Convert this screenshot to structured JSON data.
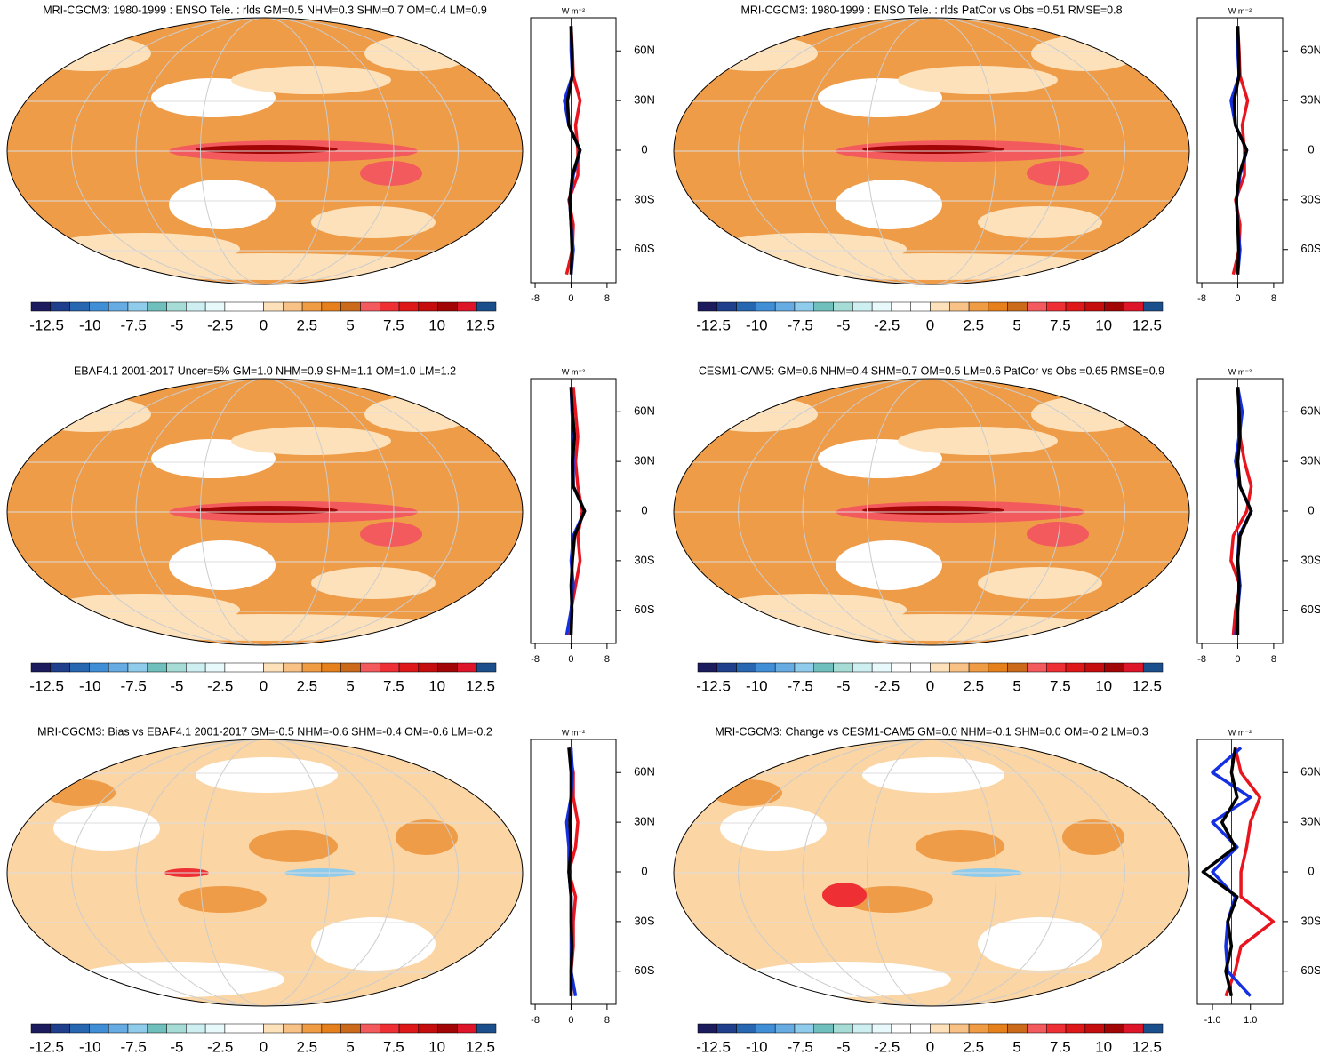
{
  "colorbar": {
    "colors": [
      "#1b1b5e",
      "#1f3f8c",
      "#2766b0",
      "#3f8ed6",
      "#66abe2",
      "#8fcbea",
      "#6fc0bd",
      "#a6dcd6",
      "#cdeff1",
      "#e8f9fb",
      "#ffffff",
      "#ffffff",
      "#fde1bb",
      "#f8c185",
      "#f09c45",
      "#e5801c",
      "#cc6a1c",
      "#f25a5e",
      "#ee3035",
      "#de1818",
      "#c50d0d",
      "#a10505",
      "#de1428",
      "#1b4f8c"
    ],
    "clim": [
      -13.4,
      13.4
    ],
    "ticks": [
      -12.5,
      -10,
      -7.5,
      -5,
      -2.5,
      0,
      2.5,
      5,
      7.5,
      10,
      12.5
    ]
  },
  "chart_data": [
    {
      "type": "map",
      "title": "MRI-CGCM3: 1980-1999 : ENSO Tele. : rlds GM=0.5 NHM=0.3 SHM=0.7 OM=0.4 LM=0.9",
      "units": "W m⁻²",
      "lat": [
        -75,
        -60,
        -45,
        -30,
        -15,
        0,
        15,
        30,
        45,
        60,
        75
      ],
      "xlim": [
        -9,
        10
      ],
      "xticks": [
        -8,
        0,
        8
      ],
      "ylim": [
        -80,
        80
      ],
      "yticks": [
        {
          "value": 60,
          "label": "60N"
        },
        {
          "value": 30,
          "label": "30N"
        },
        0,
        {
          "value": -30,
          "label": "30S"
        },
        {
          "value": -60,
          "label": "60S"
        }
      ],
      "series": [
        {
          "color": "#e8141e",
          "values": [
            -1,
            0.3,
            0.5,
            -0.5,
            1.5,
            1.5,
            1,
            2,
            0.5,
            0.3,
            0
          ]
        },
        {
          "color": "#1530e0",
          "values": [
            0,
            0.5,
            0,
            -0.3,
            0.5,
            2,
            -0.5,
            -1.5,
            0.3,
            0,
            0
          ]
        },
        {
          "color": "#000000",
          "values": [
            0,
            0.2,
            0,
            -0.3,
            0.3,
            2,
            -0.5,
            -0.8,
            0.3,
            0.2,
            0
          ]
        }
      ]
    },
    {
      "type": "map",
      "title": "MRI-CGCM3: 1980-1999 : ENSO Tele. : rlds PatCor vs Obs =0.51 RMSE=0.8",
      "units": "W m⁻²",
      "lat": [
        -75,
        -60,
        -45,
        -30,
        -15,
        0,
        15,
        30,
        45,
        60,
        75
      ],
      "xlim": [
        -9,
        10
      ],
      "xticks": [
        -8,
        0,
        8
      ],
      "ylim": [
        -80,
        80
      ],
      "yticks": [
        {
          "value": 60,
          "label": "60N"
        },
        {
          "value": 30,
          "label": "30N"
        },
        0,
        {
          "value": -30,
          "label": "30S"
        },
        {
          "value": -60,
          "label": "60S"
        }
      ],
      "series": [
        {
          "color": "#e8141e",
          "values": [
            -1,
            0.3,
            0.5,
            -0.5,
            1.5,
            1.5,
            1,
            2.2,
            0.5,
            0.3,
            0
          ]
        },
        {
          "color": "#1530e0",
          "values": [
            0,
            0.5,
            0,
            -0.3,
            0.5,
            2,
            -0.5,
            -1.5,
            0.3,
            0,
            0
          ]
        },
        {
          "color": "#000000",
          "values": [
            0,
            0.2,
            0,
            -0.3,
            0.3,
            2,
            -0.5,
            -0.8,
            0.3,
            0.2,
            0
          ]
        }
      ]
    },
    {
      "type": "map",
      "title": "EBAF4.1 2001-2017 Uncer=5% GM=1.0 NHM=0.9 SHM=1.1 OM=1.0 LM=1.2",
      "units": "W m⁻²",
      "lat": [
        -75,
        -60,
        -45,
        -30,
        -15,
        0,
        15,
        30,
        45,
        60,
        75
      ],
      "xlim": [
        -9,
        10
      ],
      "xticks": [
        -8,
        0,
        8
      ],
      "ylim": [
        -80,
        80
      ],
      "yticks": [
        {
          "value": 60,
          "label": "60N"
        },
        {
          "value": 30,
          "label": "30N"
        },
        0,
        {
          "value": -30,
          "label": "30S"
        },
        {
          "value": -60,
          "label": "60S"
        }
      ],
      "series": [
        {
          "color": "#e8141e",
          "values": [
            -0.5,
            0,
            1,
            2,
            1.5,
            2.5,
            1.5,
            1,
            1.5,
            1,
            0.5
          ]
        },
        {
          "color": "#1530e0",
          "values": [
            -1,
            0,
            0.5,
            0,
            0.5,
            3,
            0.5,
            0.5,
            0.5,
            0.2,
            0
          ]
        },
        {
          "color": "#000000",
          "values": [
            0,
            0.2,
            0,
            0.3,
            0.8,
            3,
            0.5,
            0.3,
            0.8,
            0.3,
            0
          ]
        }
      ]
    },
    {
      "type": "map",
      "title": "CESM1-CAM5: GM=0.6 NHM=0.4 SHM=0.7 OM=0.5 LM=0.6 PatCor vs Obs =0.65 RMSE=0.9",
      "units": "W m⁻²",
      "lat": [
        -75,
        -60,
        -45,
        -30,
        -15,
        0,
        15,
        30,
        45,
        60,
        75
      ],
      "xlim": [
        -9,
        10
      ],
      "xticks": [
        -8,
        0,
        8
      ],
      "ylim": [
        -80,
        80
      ],
      "yticks": [
        {
          "value": 60,
          "label": "60N"
        },
        {
          "value": 30,
          "label": "30N"
        },
        0,
        {
          "value": -30,
          "label": "30S"
        },
        {
          "value": -60,
          "label": "60S"
        }
      ],
      "series": [
        {
          "color": "#e8141e",
          "values": [
            -1,
            -0.5,
            0.5,
            -1.5,
            -1,
            2,
            3,
            1.5,
            0.5,
            0.5,
            0
          ]
        },
        {
          "color": "#1530e0",
          "values": [
            -0.5,
            0,
            0.5,
            0,
            0.3,
            3,
            0.5,
            -0.5,
            0.3,
            1,
            0
          ]
        },
        {
          "color": "#000000",
          "values": [
            0,
            0,
            0.3,
            0,
            0.5,
            3,
            0.5,
            0,
            0.5,
            0.3,
            0
          ]
        }
      ]
    },
    {
      "type": "map",
      "title": "MRI-CGCM3: Bias vs EBAF4.1 2001-2017 GM=-0.5 NHM=-0.6 SHM=-0.4 OM=-0.6 LM=-0.2",
      "units": "W m⁻²",
      "lat": [
        -75,
        -60,
        -45,
        -30,
        -15,
        0,
        15,
        30,
        45,
        60,
        75
      ],
      "xlim": [
        -9,
        10
      ],
      "xticks": [
        -8,
        0,
        8
      ],
      "ylim": [
        -80,
        80
      ],
      "yticks": [
        {
          "value": 60,
          "label": "60N"
        },
        {
          "value": 30,
          "label": "30N"
        },
        0,
        {
          "value": -30,
          "label": "30S"
        },
        {
          "value": -60,
          "label": "60S"
        }
      ],
      "series": [
        {
          "color": "#e8141e",
          "values": [
            0,
            0,
            0.5,
            0.5,
            1,
            -0.5,
            1,
            1.5,
            0.5,
            0.5,
            -0.5
          ]
        },
        {
          "color": "#1530e0",
          "values": [
            1,
            0,
            0,
            0,
            0,
            -0.5,
            -0.5,
            -1,
            0,
            0.3,
            0
          ]
        },
        {
          "color": "#000000",
          "values": [
            0,
            0,
            0.2,
            0,
            0,
            -0.5,
            0,
            -0.3,
            0,
            0,
            -0.5
          ]
        }
      ]
    },
    {
      "type": "map",
      "title": "MRI-CGCM3: Change vs CESM1-CAM5 GM=0.0 NHM=-0.1 SHM=0.0 OM=-0.2 LM=0.3",
      "units": "W m⁻²",
      "lat": [
        -75,
        -60,
        -45,
        -30,
        -15,
        0,
        15,
        30,
        45,
        60,
        75
      ],
      "xlim": [
        -1.8,
        2.7
      ],
      "xticks": [
        {
          "value": -1,
          "label": "-1.0"
        },
        {
          "value": 1,
          "label": "1.0"
        }
      ],
      "ylim": [
        -80,
        80
      ],
      "yticks": [
        {
          "value": 60,
          "label": "60N"
        },
        {
          "value": 30,
          "label": "30N"
        },
        0,
        {
          "value": -30,
          "label": "30S"
        },
        {
          "value": -60,
          "label": "60S"
        }
      ],
      "series": [
        {
          "color": "#e8141e",
          "values": [
            -0.3,
            0.2,
            0.5,
            2.2,
            0.5,
            0.5,
            0.8,
            1,
            1.5,
            0.5,
            0.2
          ]
        },
        {
          "color": "#1530e0",
          "values": [
            1,
            -0.2,
            -0.3,
            -0.2,
            0.2,
            -1,
            0.3,
            -1,
            1,
            -1,
            0.5
          ]
        },
        {
          "color": "#000000",
          "values": [
            0,
            -0.3,
            0,
            -0.2,
            0.3,
            -1.5,
            0.2,
            -0.5,
            0.3,
            0,
            0.2
          ]
        }
      ]
    }
  ]
}
